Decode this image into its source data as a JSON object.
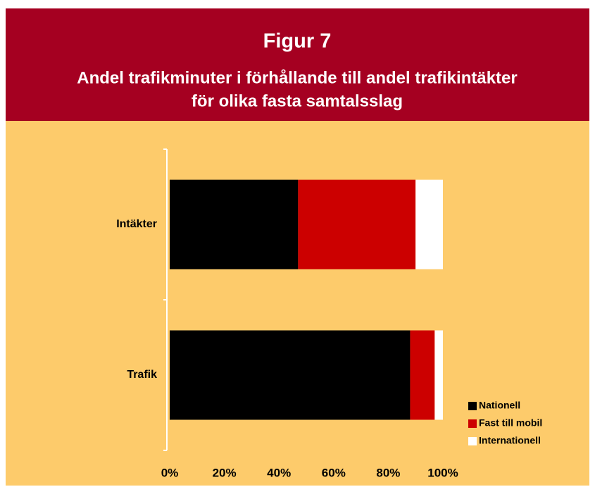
{
  "chart_data": {
    "type": "stacked-barh",
    "title": "Figur 7",
    "subtitle": [
      "Andel trafikminuter i förhållande till andel trafikintäkter",
      "för olika fasta samtalsslag"
    ],
    "categories": [
      "Intäkter",
      "Trafik"
    ],
    "series": [
      {
        "name": "Nationell",
        "color": "#000000",
        "values": [
          47,
          88
        ]
      },
      {
        "name": "Fast till mobil",
        "color": "#cc0000",
        "values": [
          43,
          9
        ]
      },
      {
        "name": "Internationell",
        "color": "#ffffff",
        "values": [
          10,
          3
        ]
      }
    ],
    "xlim": [
      0,
      100
    ],
    "xticks": [
      {
        "value": 0,
        "label": "0%"
      },
      {
        "value": 20,
        "label": "20%"
      },
      {
        "value": 40,
        "label": "40%"
      },
      {
        "value": 60,
        "label": "60%"
      },
      {
        "value": 80,
        "label": "80%"
      },
      {
        "value": 100,
        "label": "100%"
      }
    ],
    "legend": "lower-right"
  }
}
